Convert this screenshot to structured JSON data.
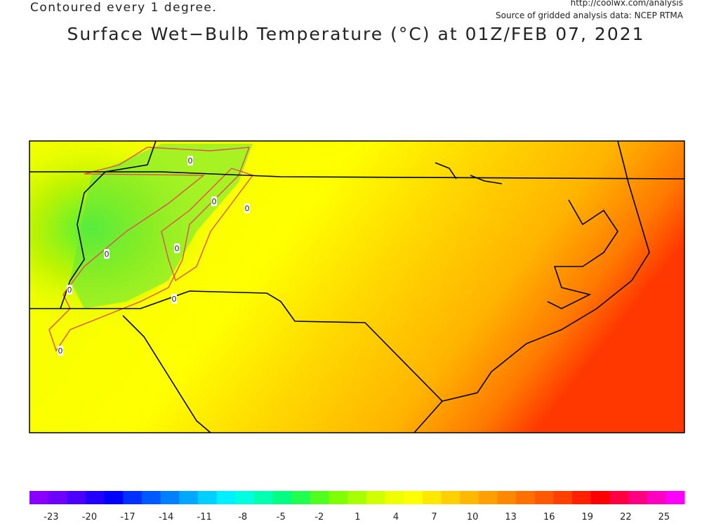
{
  "header": {
    "contour_note": "Contoured every 1 degree.",
    "url": "http://coolwx.com/analysis",
    "source": "Source of gridded analysis data:  NCEP RTMA",
    "title": "Surface Wet−Bulb Temperature (°C) at 01Z/FEB 07, 2021"
  },
  "contour_labels": [
    "0",
    "0",
    "0",
    "0",
    "0",
    "0",
    "0",
    "0"
  ],
  "colorbar": {
    "lim": [
      -24.7,
      26.6
    ],
    "ticks": [
      -23,
      -20,
      -17,
      -14,
      -11,
      -8,
      -5,
      -2,
      1,
      4,
      7,
      10,
      13,
      16,
      19,
      22,
      25
    ],
    "colors": [
      "#8a00ff",
      "#6e00ff",
      "#4a00ff",
      "#2200ff",
      "#0000ff",
      "#0030ff",
      "#0058ff",
      "#0080ff",
      "#00a8ff",
      "#00d0ff",
      "#00f0ff",
      "#00ffe0",
      "#00ffb0",
      "#00ff80",
      "#20ff50",
      "#50ff20",
      "#80ff00",
      "#a8ff00",
      "#d0ff00",
      "#f0ff00",
      "#ffff00",
      "#ffe800",
      "#ffd000",
      "#ffb800",
      "#ffa000",
      "#ff8800",
      "#ff7000",
      "#ff5800",
      "#ff4000",
      "#ff2000",
      "#ff0000",
      "#ff0040",
      "#ff0080",
      "#ff00c0",
      "#ff00ff"
    ]
  }
}
